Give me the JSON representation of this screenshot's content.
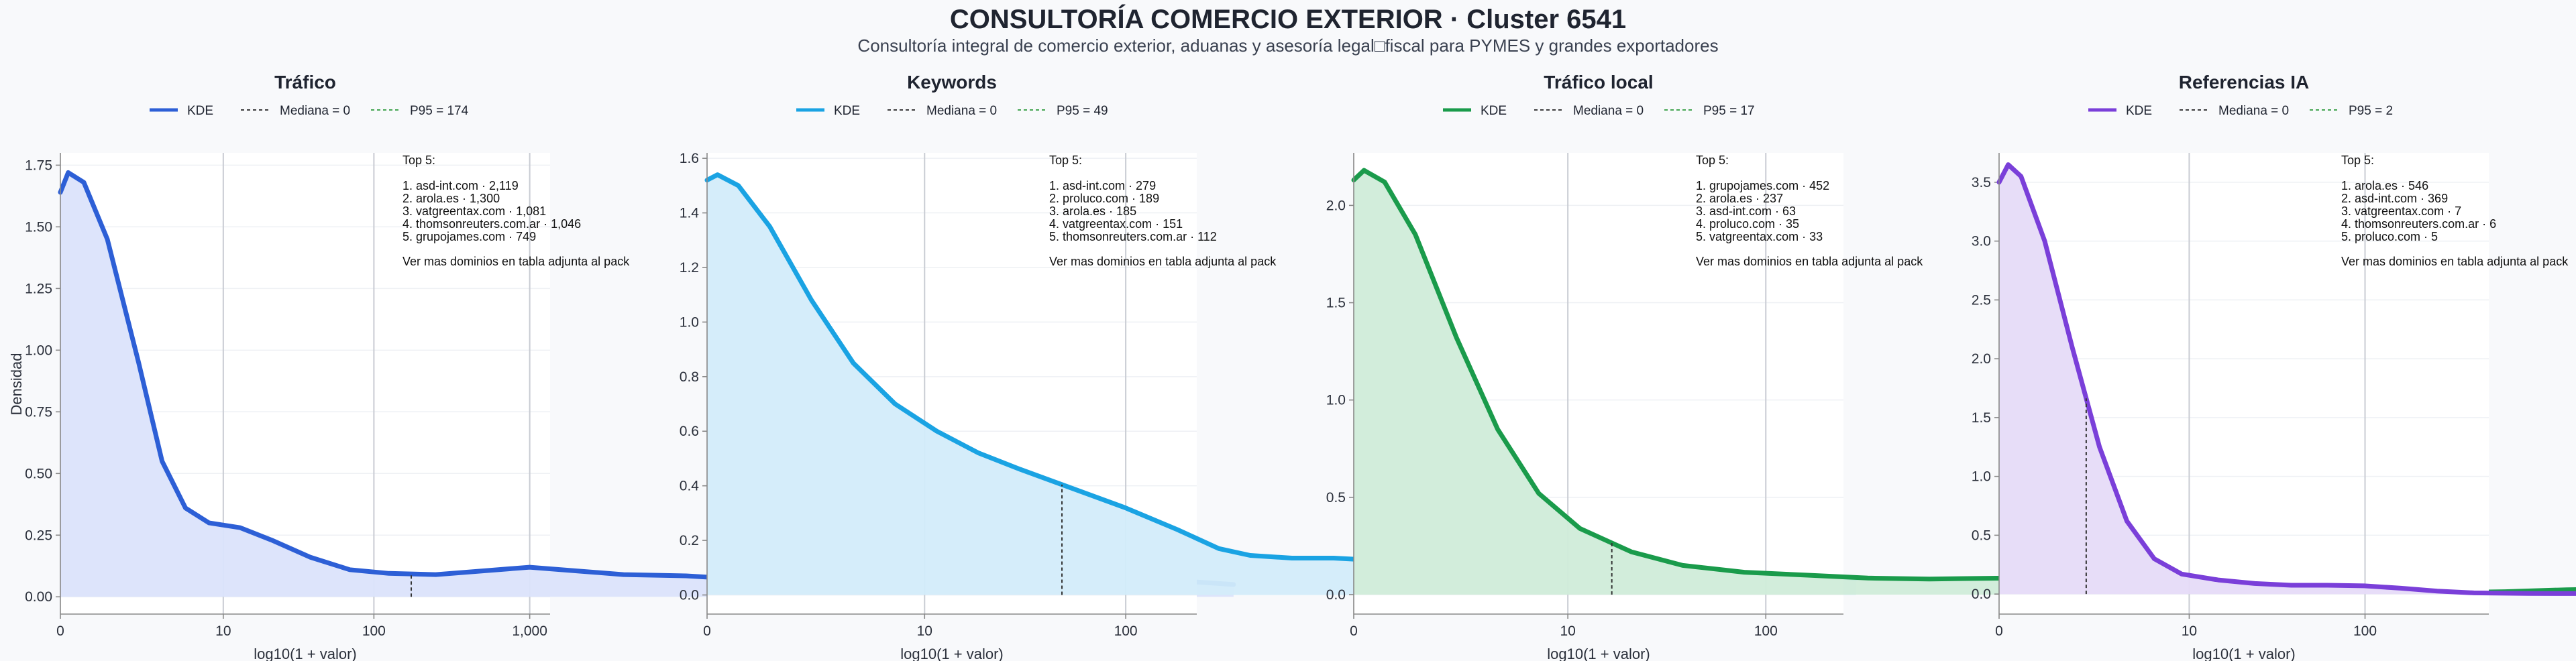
{
  "header": {
    "title": "CONSULTORÍA COMERCIO EXTERIOR · Cluster 6541",
    "subtitle": "Consultoría integral de comercio exterior, aduanas y asesoría legal□fiscal para PYMES y grandes exportadores"
  },
  "shared": {
    "ylabel": "Densidad",
    "xlabel": "log10(1 + valor)",
    "legend": {
      "kde": "KDE",
      "median": "Mediana = 0"
    },
    "note_heading": "Top 5:",
    "note_footer": "Ver mas dominios en tabla adjunta al pack"
  },
  "chart_data": [
    {
      "type": "area",
      "title": "Tráfico",
      "color": "#2d5fd6",
      "fill": "#dbe3fb",
      "xlabel": "log10(1 + valor)",
      "ylabel": "Densidad",
      "x_scale": "log10(1+x)",
      "xlim": [
        0,
        1350
      ],
      "ylim": [
        -0.07,
        1.8
      ],
      "yticks": [
        0.0,
        0.25,
        0.5,
        0.75,
        1.0,
        1.25,
        1.5,
        1.75
      ],
      "ytick_labels": [
        "0.00",
        "0.25",
        "0.50",
        "0.75",
        "1.00",
        "1.25",
        "1.50",
        "1.75"
      ],
      "xticks": [
        0,
        10,
        100,
        1000
      ],
      "xtick_labels": [
        "0",
        "10",
        "100",
        "1,000"
      ],
      "median": 0,
      "p95": 174,
      "legend_p95": "P95 = 174",
      "kde": [
        [
          0,
          1.64
        ],
        [
          0.05,
          1.72
        ],
        [
          0.15,
          1.68
        ],
        [
          0.3,
          1.45
        ],
        [
          0.5,
          0.95
        ],
        [
          0.65,
          0.55
        ],
        [
          0.8,
          0.36
        ],
        [
          0.95,
          0.3
        ],
        [
          1.15,
          0.28
        ],
        [
          1.35,
          0.23
        ],
        [
          1.6,
          0.16
        ],
        [
          1.85,
          0.11
        ],
        [
          2.1,
          0.095
        ],
        [
          2.4,
          0.09
        ],
        [
          2.7,
          0.105
        ],
        [
          3.0,
          0.12
        ],
        [
          3.3,
          0.105
        ],
        [
          3.6,
          0.09
        ],
        [
          4.0,
          0.085
        ],
        [
          4.4,
          0.07
        ],
        [
          4.8,
          0.055
        ],
        [
          5.3,
          0.045
        ],
        [
          5.8,
          0.04
        ],
        [
          6.3,
          0.05
        ],
        [
          6.8,
          0.065
        ],
        [
          7.2,
          0.063
        ],
        [
          7.5,
          0.05
        ]
      ],
      "top5": [
        "1. asd-int.com · 2,119",
        "2. arola.es · 1,300",
        "3. vatgreentax.com · 1,081",
        "4. thomsonreuters.com.ar · 1,046",
        "5. grupojames.com · 749"
      ]
    },
    {
      "type": "area",
      "title": "Keywords",
      "color": "#1aa3e3",
      "fill": "#d3ecfa",
      "xlabel": "log10(1 + valor)",
      "ylabel": "",
      "x_scale": "log10(1+x)",
      "xlim": [
        0,
        220
      ],
      "ylim": [
        -0.07,
        1.62
      ],
      "yticks": [
        0.0,
        0.2,
        0.4,
        0.6,
        0.8,
        1.0,
        1.2,
        1.4,
        1.6
      ],
      "ytick_labels": [
        "0.0",
        "0.2",
        "0.4",
        "0.6",
        "0.8",
        "1.0",
        "1.2",
        "1.4",
        "1.6"
      ],
      "xticks": [
        0,
        10,
        100
      ],
      "xtick_labels": [
        "0",
        "10",
        "100"
      ],
      "median": 0,
      "p95": 49,
      "legend_p95": "P95 = 49",
      "kde": [
        [
          0,
          1.52
        ],
        [
          0.05,
          1.54
        ],
        [
          0.15,
          1.5
        ],
        [
          0.3,
          1.35
        ],
        [
          0.5,
          1.08
        ],
        [
          0.7,
          0.85
        ],
        [
          0.9,
          0.7
        ],
        [
          1.1,
          0.6
        ],
        [
          1.3,
          0.52
        ],
        [
          1.5,
          0.46
        ],
        [
          1.75,
          0.39
        ],
        [
          2.0,
          0.32
        ],
        [
          2.25,
          0.24
        ],
        [
          2.45,
          0.17
        ],
        [
          2.6,
          0.145
        ],
        [
          2.8,
          0.135
        ],
        [
          3.0,
          0.135
        ],
        [
          3.25,
          0.125
        ],
        [
          3.5,
          0.11
        ],
        [
          3.8,
          0.105
        ],
        [
          4.1,
          0.1
        ],
        [
          4.4,
          0.09
        ],
        [
          4.7,
          0.085
        ],
        [
          5.0,
          0.085
        ],
        [
          5.3,
          0.078
        ],
        [
          5.5,
          0.06
        ]
      ],
      "top5": [
        "1. asd-int.com · 279",
        "2. proluco.com · 189",
        "3. arola.es · 185",
        "4. vatgreentax.com · 151",
        "5. thomsonreuters.com.ar · 112"
      ]
    },
    {
      "type": "area",
      "title": "Tráfico local",
      "color": "#1a9b4b",
      "fill": "#d0ecd9",
      "xlabel": "log10(1 + valor)",
      "ylabel": "",
      "x_scale": "log10(1+x)",
      "xlim": [
        0,
        240
      ],
      "ylim": [
        -0.1,
        2.27
      ],
      "yticks": [
        0.0,
        0.5,
        1.0,
        1.5,
        2.0
      ],
      "ytick_labels": [
        "0.0",
        "0.5",
        "1.0",
        "1.5",
        "2.0"
      ],
      "xticks": [
        0,
        10,
        100
      ],
      "xtick_labels": [
        "0",
        "10",
        "100"
      ],
      "median": 0,
      "p95": 17,
      "legend_p95": "P95 = 17",
      "kde": [
        [
          0,
          2.13
        ],
        [
          0.05,
          2.18
        ],
        [
          0.15,
          2.12
        ],
        [
          0.3,
          1.85
        ],
        [
          0.5,
          1.32
        ],
        [
          0.7,
          0.85
        ],
        [
          0.9,
          0.52
        ],
        [
          1.1,
          0.34
        ],
        [
          1.35,
          0.22
        ],
        [
          1.6,
          0.15
        ],
        [
          1.9,
          0.115
        ],
        [
          2.2,
          0.1
        ],
        [
          2.5,
          0.085
        ],
        [
          2.8,
          0.08
        ],
        [
          3.2,
          0.085
        ],
        [
          3.5,
          0.088
        ],
        [
          3.8,
          0.08
        ],
        [
          4.1,
          0.06
        ],
        [
          4.4,
          0.04
        ],
        [
          4.7,
          0.022
        ],
        [
          5.0,
          0.012
        ],
        [
          5.3,
          0.01
        ],
        [
          5.6,
          0.015
        ],
        [
          5.9,
          0.025
        ],
        [
          6.2,
          0.03
        ]
      ],
      "top5": [
        "1. grupojames.com · 452",
        "2. arola.es · 237",
        "3. asd-int.com · 63",
        "4. proluco.com · 35",
        "5. vatgreentax.com · 33"
      ]
    },
    {
      "type": "area",
      "title": "Referencias IA",
      "color": "#7a3fd9",
      "fill": "#e6dbf8",
      "xlabel": "log10(1 + valor)",
      "ylabel": "",
      "x_scale": "log10(1+x)",
      "xlim": [
        0,
        480
      ],
      "ylim": [
        -0.17,
        3.75
      ],
      "yticks": [
        0.0,
        0.5,
        1.0,
        1.5,
        2.0,
        2.5,
        3.0,
        3.5
      ],
      "ytick_labels": [
        "0.0",
        "0.5",
        "1.0",
        "1.5",
        "2.0",
        "2.5",
        "3.0",
        "3.5"
      ],
      "xticks": [
        0,
        10,
        100
      ],
      "xtick_labels": [
        "0",
        "10",
        "100"
      ],
      "median": 0,
      "p95": 2,
      "legend_p95": "P95 = 2",
      "kde": [
        [
          0,
          3.5
        ],
        [
          0.05,
          3.65
        ],
        [
          0.12,
          3.55
        ],
        [
          0.25,
          3.0
        ],
        [
          0.4,
          2.1
        ],
        [
          0.55,
          1.25
        ],
        [
          0.7,
          0.62
        ],
        [
          0.85,
          0.3
        ],
        [
          1.0,
          0.17
        ],
        [
          1.2,
          0.12
        ],
        [
          1.4,
          0.09
        ],
        [
          1.6,
          0.075
        ],
        [
          1.8,
          0.075
        ],
        [
          2.0,
          0.07
        ],
        [
          2.2,
          0.05
        ],
        [
          2.4,
          0.025
        ],
        [
          2.6,
          0.01
        ],
        [
          2.9,
          0.005
        ],
        [
          3.3,
          0.004
        ],
        [
          3.8,
          0.004
        ],
        [
          4.3,
          0.004
        ],
        [
          4.8,
          0.004
        ],
        [
          5.3,
          0.004
        ],
        [
          5.7,
          0.01
        ],
        [
          6.0,
          0.025
        ],
        [
          6.2,
          0.04
        ]
      ],
      "top5": [
        "1. arola.es · 546",
        "2. asd-int.com · 369",
        "3. vatgreentax.com · 7",
        "4. thomsonreuters.com.ar · 6",
        "5. proluco.com · 5"
      ]
    }
  ]
}
